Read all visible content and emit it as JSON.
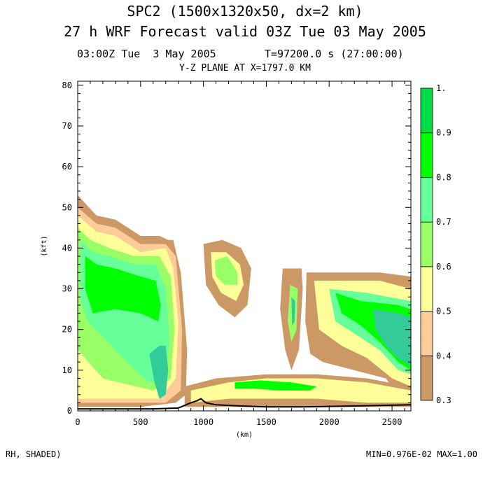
{
  "header": {
    "title_line1": "SPC2 (1500x1320x50, dx=2 km)",
    "title_line2": "27 h WRF Forecast valid 03Z Tue 03 May 2005",
    "time_left": "03:00Z Tue  3 May 2005",
    "time_right": "T=97200.0 s (27:00:00)",
    "plane": "Y-Z PLANE AT X=1797.0 KM"
  },
  "footer": {
    "field": "RH, SHADED)",
    "minmax": "MIN=0.976E-02 MAX=1.00"
  },
  "chart_data": {
    "type": "heatmap",
    "xlabel": "(km)",
    "ylabel": "(kft)",
    "xlim": [
      0,
      2650
    ],
    "ylim": [
      0,
      81
    ],
    "xticks": [
      "0",
      "500",
      "1000",
      "1500",
      "2000",
      "2500"
    ],
    "yticks": [
      "0",
      "10",
      "20",
      "30",
      "40",
      "50",
      "60",
      "70",
      "80"
    ],
    "colorbar": {
      "labels": [
        "0.3",
        "0.4",
        "0.5",
        "0.6",
        "0.7",
        "0.8",
        "0.9",
        "1."
      ],
      "colors": [
        "#cc9966",
        "#ffcc99",
        "#ffff99",
        "#99ff66",
        "#66ff99",
        "#00ff00",
        "#00dd44",
        "#33cc99"
      ]
    },
    "regions": [
      {
        "name": "left-cloud-0.3",
        "level": 0.3,
        "points": [
          [
            0,
            53
          ],
          [
            150,
            48
          ],
          [
            300,
            47
          ],
          [
            500,
            43
          ],
          [
            650,
            43
          ],
          [
            720,
            42
          ],
          [
            760,
            42
          ],
          [
            820,
            34
          ],
          [
            870,
            15
          ],
          [
            860,
            4
          ],
          [
            780,
            2
          ],
          [
            500,
            1
          ],
          [
            300,
            1
          ],
          [
            0,
            1
          ]
        ]
      },
      {
        "name": "left-cloud-0.4",
        "level": 0.4,
        "points": [
          [
            0,
            50
          ],
          [
            150,
            46
          ],
          [
            300,
            45
          ],
          [
            500,
            41
          ],
          [
            700,
            41
          ],
          [
            780,
            38
          ],
          [
            830,
            20
          ],
          [
            820,
            5
          ],
          [
            700,
            2
          ],
          [
            300,
            2
          ],
          [
            0,
            2
          ]
        ]
      },
      {
        "name": "left-cloud-0.5",
        "level": 0.5,
        "points": [
          [
            0,
            48
          ],
          [
            150,
            44
          ],
          [
            300,
            43
          ],
          [
            500,
            39
          ],
          [
            700,
            40
          ],
          [
            760,
            35
          ],
          [
            800,
            22
          ],
          [
            780,
            8
          ],
          [
            650,
            3
          ],
          [
            300,
            3
          ],
          [
            0,
            3
          ]
        ]
      },
      {
        "name": "left-cloud-0.6",
        "level": 0.6,
        "points": [
          [
            0,
            45
          ],
          [
            100,
            42
          ],
          [
            250,
            40
          ],
          [
            450,
            38
          ],
          [
            650,
            38
          ],
          [
            740,
            33
          ],
          [
            770,
            20
          ],
          [
            740,
            8
          ],
          [
            600,
            5
          ],
          [
            200,
            8
          ],
          [
            0,
            15
          ]
        ]
      },
      {
        "name": "left-cloud-0.7",
        "level": 0.7,
        "points": [
          [
            20,
            42
          ],
          [
            120,
            39
          ],
          [
            260,
            38
          ],
          [
            450,
            36
          ],
          [
            620,
            36
          ],
          [
            700,
            30
          ],
          [
            730,
            18
          ],
          [
            700,
            8
          ],
          [
            560,
            7
          ],
          [
            300,
            15
          ],
          [
            80,
            22
          ],
          [
            20,
            28
          ]
        ]
      },
      {
        "name": "left-cloud-0.8",
        "level": 0.8,
        "points": [
          [
            60,
            38
          ],
          [
            150,
            36
          ],
          [
            300,
            35
          ],
          [
            500,
            33
          ],
          [
            620,
            32
          ],
          [
            660,
            26
          ],
          [
            640,
            22
          ],
          [
            500,
            24
          ],
          [
            300,
            25
          ],
          [
            120,
            24
          ],
          [
            60,
            30
          ]
        ]
      },
      {
        "name": "left-core-1",
        "level": 1.0,
        "points": [
          [
            570,
            14
          ],
          [
            650,
            16
          ],
          [
            700,
            16
          ],
          [
            720,
            10
          ],
          [
            700,
            4
          ],
          [
            650,
            3
          ],
          [
            610,
            7
          ]
        ]
      },
      {
        "name": "top-blob-0.3",
        "level": 0.3,
        "points": [
          [
            1000,
            41
          ],
          [
            1150,
            42
          ],
          [
            1300,
            40
          ],
          [
            1380,
            35
          ],
          [
            1350,
            26
          ],
          [
            1250,
            23
          ],
          [
            1120,
            26
          ],
          [
            1020,
            31
          ]
        ]
      },
      {
        "name": "top-blob-0.5",
        "level": 0.5,
        "points": [
          [
            1060,
            39
          ],
          [
            1180,
            39
          ],
          [
            1290,
            36
          ],
          [
            1320,
            31
          ],
          [
            1260,
            27
          ],
          [
            1140,
            29
          ],
          [
            1070,
            33
          ]
        ]
      },
      {
        "name": "top-blob-0.6",
        "level": 0.6,
        "points": [
          [
            1090,
            37
          ],
          [
            1190,
            38
          ],
          [
            1270,
            34
          ],
          [
            1270,
            31
          ],
          [
            1170,
            31
          ],
          [
            1100,
            33
          ]
        ]
      },
      {
        "name": "mid-cloud-0.3",
        "level": 0.3,
        "points": [
          [
            1630,
            35
          ],
          [
            1780,
            35
          ],
          [
            1790,
            30
          ],
          [
            1760,
            15
          ],
          [
            1700,
            10
          ],
          [
            1650,
            15
          ],
          [
            1610,
            25
          ]
        ]
      },
      {
        "name": "mid-cloud-0.6",
        "level": 0.6,
        "points": [
          [
            1690,
            31
          ],
          [
            1750,
            30
          ],
          [
            1740,
            20
          ],
          [
            1700,
            17
          ],
          [
            1670,
            22
          ]
        ]
      },
      {
        "name": "mid-core-1",
        "level": 1.0,
        "points": [
          [
            1700,
            28
          ],
          [
            1730,
            27
          ],
          [
            1725,
            22
          ],
          [
            1705,
            21
          ]
        ]
      },
      {
        "name": "right-cloud-0.3",
        "level": 0.3,
        "points": [
          [
            1820,
            34
          ],
          [
            2000,
            34
          ],
          [
            2400,
            34
          ],
          [
            2650,
            33
          ],
          [
            2650,
            3
          ],
          [
            2550,
            4
          ],
          [
            2450,
            8
          ],
          [
            2200,
            10
          ],
          [
            1950,
            12
          ],
          [
            1850,
            14
          ],
          [
            1810,
            22
          ]
        ]
      },
      {
        "name": "right-cloud-0.5",
        "level": 0.5,
        "points": [
          [
            1880,
            32
          ],
          [
            2050,
            32
          ],
          [
            2400,
            32
          ],
          [
            2650,
            30
          ],
          [
            2650,
            6
          ],
          [
            2500,
            8
          ],
          [
            2300,
            13
          ],
          [
            2100,
            16
          ],
          [
            1920,
            20
          ]
        ]
      },
      {
        "name": "right-cloud-0.7",
        "level": 0.7,
        "points": [
          [
            2000,
            30
          ],
          [
            2300,
            29
          ],
          [
            2650,
            27
          ],
          [
            2650,
            9
          ],
          [
            2550,
            10
          ],
          [
            2400,
            15
          ],
          [
            2200,
            19
          ],
          [
            2050,
            22
          ]
        ]
      },
      {
        "name": "right-cloud-0.8",
        "level": 0.8,
        "points": [
          [
            2050,
            29
          ],
          [
            2250,
            27
          ],
          [
            2550,
            26
          ],
          [
            2650,
            25
          ],
          [
            2650,
            10
          ],
          [
            2550,
            12
          ],
          [
            2400,
            17
          ],
          [
            2250,
            21
          ],
          [
            2100,
            24
          ]
        ]
      },
      {
        "name": "right-core-1",
        "level": 1.0,
        "points": [
          [
            2350,
            25
          ],
          [
            2550,
            24
          ],
          [
            2650,
            23
          ],
          [
            2650,
            11
          ],
          [
            2550,
            13
          ],
          [
            2450,
            16
          ],
          [
            2370,
            20
          ]
        ]
      },
      {
        "name": "low-band-0.3",
        "level": 0.3,
        "points": [
          [
            850,
            6
          ],
          [
            1100,
            8
          ],
          [
            1500,
            9
          ],
          [
            1900,
            9
          ],
          [
            2300,
            8
          ],
          [
            2650,
            6
          ],
          [
            2650,
            1
          ],
          [
            2300,
            1
          ],
          [
            1900,
            1
          ],
          [
            1500,
            1
          ],
          [
            1100,
            1
          ],
          [
            850,
            1
          ]
        ]
      },
      {
        "name": "low-band-0.5",
        "level": 0.5,
        "points": [
          [
            900,
            5
          ],
          [
            1200,
            7
          ],
          [
            1500,
            8
          ],
          [
            1900,
            8
          ],
          [
            2300,
            7
          ],
          [
            2650,
            5
          ],
          [
            2650,
            2
          ],
          [
            2300,
            2
          ],
          [
            1900,
            3
          ],
          [
            1500,
            3
          ],
          [
            1200,
            3
          ],
          [
            900,
            2
          ]
        ]
      },
      {
        "name": "low-band-0.8",
        "level": 0.8,
        "points": [
          [
            1250,
            7
          ],
          [
            1450,
            7.5
          ],
          [
            1700,
            7
          ],
          [
            1900,
            6
          ],
          [
            1850,
            5
          ],
          [
            1600,
            5
          ],
          [
            1400,
            5.5
          ],
          [
            1250,
            5.5
          ]
        ]
      }
    ],
    "terrain": [
      [
        0,
        0.5
      ],
      [
        300,
        0.5
      ],
      [
        600,
        0.5
      ],
      [
        800,
        0.7
      ],
      [
        900,
        2
      ],
      [
        950,
        2.5
      ],
      [
        980,
        3
      ],
      [
        1020,
        2
      ],
      [
        1100,
        1.5
      ],
      [
        1300,
        1.2
      ],
      [
        1500,
        1.0
      ],
      [
        1800,
        1.0
      ],
      [
        2200,
        1.2
      ],
      [
        2650,
        1.5
      ]
    ]
  }
}
